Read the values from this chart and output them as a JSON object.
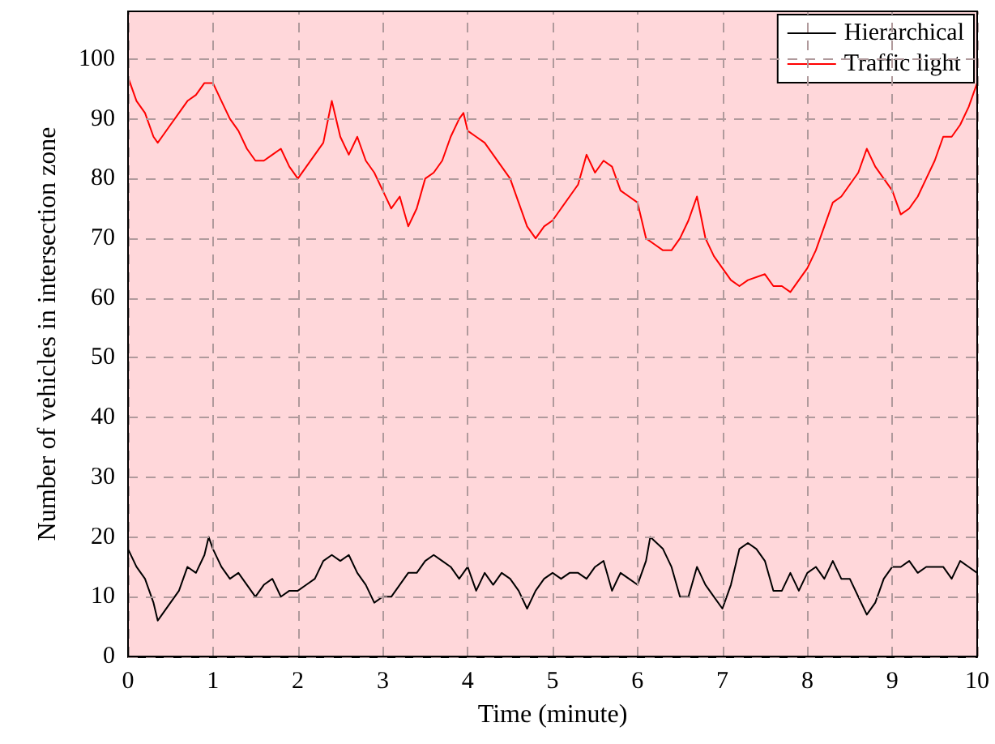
{
  "chart_data": {
    "type": "line",
    "xlabel": "Time (minute)",
    "ylabel": "Number of vehicles in intersection zone",
    "xlim": [
      0,
      10
    ],
    "xticks": [
      0,
      1,
      2,
      3,
      4,
      5,
      6,
      7,
      8,
      9,
      10
    ],
    "ylim": [
      0,
      108
    ],
    "yticks": [
      0,
      10,
      20,
      30,
      40,
      50,
      60,
      70,
      80,
      90,
      100
    ],
    "grid": true,
    "legend": "top right",
    "marker": "none",
    "line_style": "solid",
    "bands": [
      {
        "axis": "x",
        "from": 0,
        "to": 10,
        "color": "#ffd7da"
      }
    ],
    "series": [
      {
        "name": "Hierarchical",
        "color": "#000000",
        "x": [
          0,
          0.1,
          0.2,
          0.3,
          0.35,
          0.4,
          0.5,
          0.6,
          0.7,
          0.8,
          0.9,
          0.95,
          1.0,
          1.1,
          1.2,
          1.3,
          1.4,
          1.5,
          1.6,
          1.7,
          1.8,
          1.9,
          2.0,
          2.1,
          2.2,
          2.3,
          2.4,
          2.5,
          2.6,
          2.7,
          2.8,
          2.9,
          3.0,
          3.1,
          3.2,
          3.3,
          3.4,
          3.5,
          3.6,
          3.7,
          3.8,
          3.9,
          4.0,
          4.1,
          4.2,
          4.3,
          4.4,
          4.5,
          4.6,
          4.7,
          4.8,
          4.9,
          5.0,
          5.1,
          5.2,
          5.3,
          5.4,
          5.5,
          5.6,
          5.7,
          5.8,
          5.9,
          6.0,
          6.1,
          6.15,
          6.3,
          6.4,
          6.5,
          6.6,
          6.7,
          6.8,
          6.9,
          7.0,
          7.1,
          7.2,
          7.3,
          7.4,
          7.5,
          7.6,
          7.7,
          7.8,
          7.9,
          8.0,
          8.1,
          8.2,
          8.3,
          8.4,
          8.5,
          8.6,
          8.7,
          8.8,
          8.9,
          9.0,
          9.1,
          9.2,
          9.3,
          9.4,
          9.5,
          9.6,
          9.7,
          9.8,
          9.9,
          10
        ],
        "values": [
          18,
          15,
          13,
          9,
          6,
          7,
          9,
          11,
          15,
          14,
          17,
          20,
          18,
          15,
          13,
          14,
          12,
          10,
          12,
          13,
          10,
          11,
          11,
          12,
          13,
          16,
          17,
          16,
          17,
          14,
          12,
          9,
          10,
          10,
          12,
          14,
          14,
          16,
          17,
          16,
          15,
          13,
          15,
          11,
          14,
          12,
          14,
          13,
          11,
          8,
          11,
          13,
          14,
          13,
          14,
          14,
          13,
          15,
          16,
          11,
          14,
          13,
          12,
          16,
          20,
          18,
          15,
          10,
          10,
          15,
          12,
          10,
          8,
          12,
          18,
          19,
          18,
          16,
          11,
          11,
          14,
          11,
          14,
          15,
          13,
          16,
          13,
          13,
          10,
          7,
          9,
          13,
          15,
          15,
          16,
          14,
          15,
          15,
          15,
          13,
          16,
          15,
          14
        ]
      },
      {
        "name": "Traffic light",
        "color": "#ff0000",
        "x": [
          0,
          0.1,
          0.2,
          0.3,
          0.35,
          0.4,
          0.5,
          0.6,
          0.7,
          0.8,
          0.9,
          1.0,
          1.1,
          1.2,
          1.3,
          1.4,
          1.5,
          1.6,
          1.7,
          1.8,
          1.9,
          2.0,
          2.1,
          2.2,
          2.3,
          2.4,
          2.5,
          2.6,
          2.7,
          2.8,
          2.9,
          3.0,
          3.1,
          3.2,
          3.3,
          3.4,
          3.5,
          3.6,
          3.7,
          3.8,
          3.9,
          3.95,
          4.0,
          4.1,
          4.2,
          4.3,
          4.4,
          4.5,
          4.6,
          4.7,
          4.8,
          4.9,
          5.0,
          5.1,
          5.2,
          5.3,
          5.4,
          5.5,
          5.6,
          5.7,
          5.8,
          5.9,
          6.0,
          6.1,
          6.2,
          6.3,
          6.4,
          6.5,
          6.6,
          6.7,
          6.8,
          6.9,
          7.0,
          7.1,
          7.2,
          7.3,
          7.5,
          7.6,
          7.7,
          7.8,
          7.9,
          8.0,
          8.1,
          8.2,
          8.3,
          8.4,
          8.5,
          8.6,
          8.7,
          8.8,
          8.9,
          9.0,
          9.1,
          9.2,
          9.3,
          9.4,
          9.5,
          9.6,
          9.7,
          9.8,
          9.9,
          10
        ],
        "values": [
          97,
          93,
          91,
          87,
          86,
          87,
          89,
          91,
          93,
          94,
          96,
          96,
          93,
          90,
          88,
          85,
          83,
          83,
          84,
          85,
          82,
          80,
          82,
          84,
          86,
          93,
          87,
          84,
          87,
          83,
          81,
          78,
          75,
          77,
          72,
          75,
          80,
          81,
          83,
          87,
          90,
          91,
          88,
          87,
          86,
          84,
          82,
          80,
          76,
          72,
          70,
          72,
          73,
          75,
          77,
          79,
          84,
          81,
          83,
          82,
          78,
          77,
          76,
          70,
          69,
          68,
          68,
          70,
          73,
          77,
          70,
          67,
          65,
          63,
          62,
          63,
          64,
          62,
          62,
          61,
          63,
          65,
          68,
          72,
          76,
          77,
          79,
          81,
          85,
          82,
          80,
          78,
          74,
          75,
          77,
          80,
          83,
          87,
          87,
          89,
          92,
          96
        ]
      }
    ]
  }
}
